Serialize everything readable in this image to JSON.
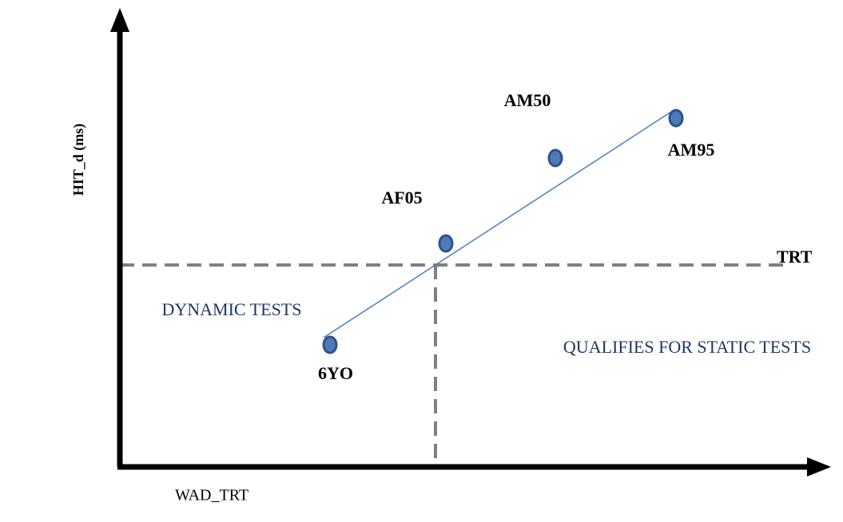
{
  "y_axis_label": "HIT_d (ms)",
  "x_axis_label": "WAD_TRT",
  "threshold_label": "TRT",
  "regions": [
    "DYNAMIC TESTS",
    "QUALIFIES FOR STATIC TESTS"
  ],
  "points": [
    {
      "label": "6YO"
    },
    {
      "label": "AF05"
    },
    {
      "label": "AM50"
    },
    {
      "label": "AM95"
    }
  ]
}
